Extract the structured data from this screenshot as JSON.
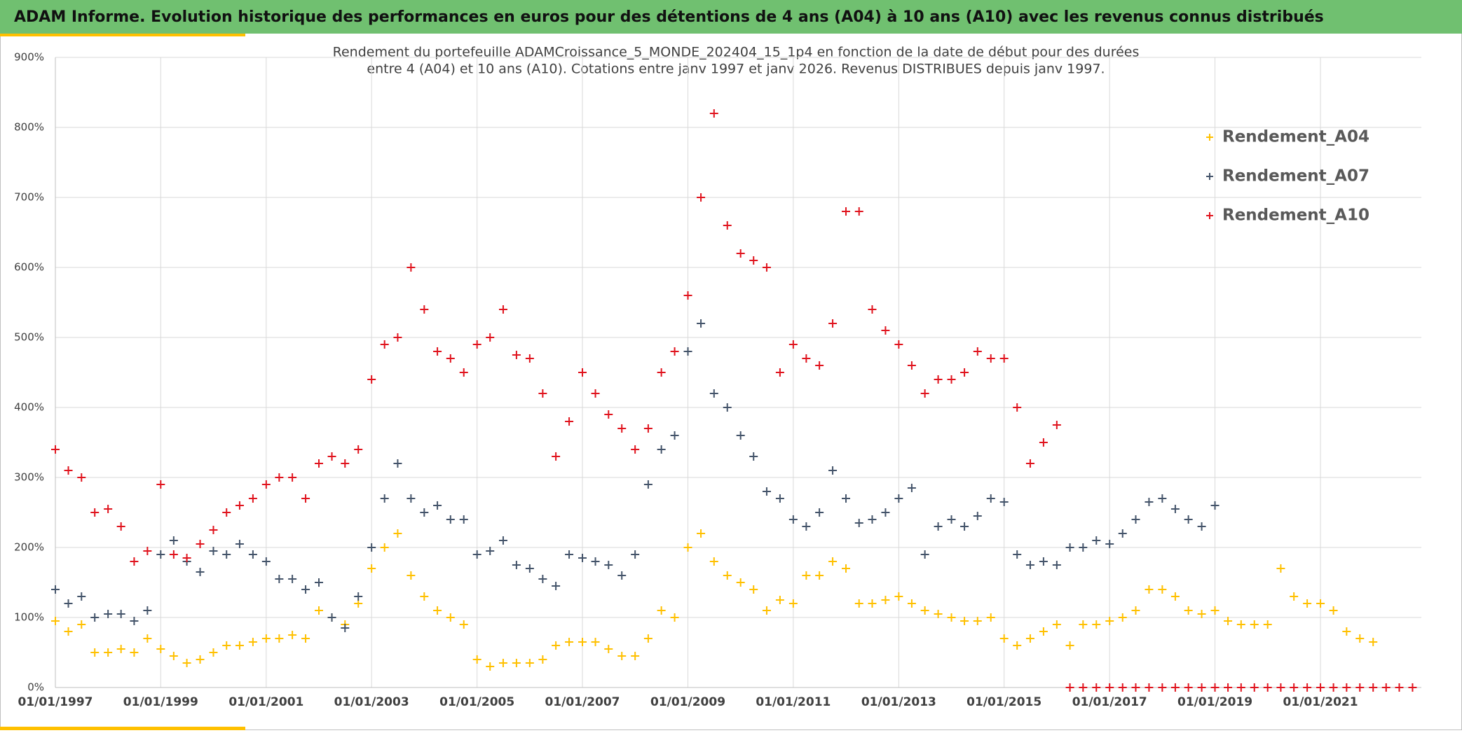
{
  "chart_data": {
    "type": "scatter",
    "title": "ADAM Informe. Evolution historique des performances en euros pour des détentions de 4 ans (A04) à 10 ans (A10) avec les revenus connus distribués",
    "subtitle": [
      "Rendement du portefeuille ADAMCroissance_5_MONDE_202404_15_1p4  en fonction de la date de début pour des durées",
      "entre 4 (A04) et 10 ans (A10). Cotations entre janv 1997 et janv 2026. Revenus DISTRIBUES depuis janv 1997."
    ],
    "x": [
      "1997-01-01",
      "1997-04-01",
      "1997-07-01",
      "1997-10-01",
      "1998-01-01",
      "1998-04-01",
      "1998-07-01",
      "1998-10-01",
      "1999-01-01",
      "1999-04-01",
      "1999-07-01",
      "1999-10-01",
      "2000-01-01",
      "2000-04-01",
      "2000-07-01",
      "2000-10-01",
      "2001-01-01",
      "2001-04-01",
      "2001-07-01",
      "2001-10-01",
      "2002-01-01",
      "2002-04-01",
      "2002-07-01",
      "2002-10-01",
      "2003-01-01",
      "2003-04-01",
      "2003-07-01",
      "2003-10-01",
      "2004-01-01",
      "2004-04-01",
      "2004-07-01",
      "2004-10-01",
      "2005-01-01",
      "2005-04-01",
      "2005-07-01",
      "2005-10-01",
      "2006-01-01",
      "2006-04-01",
      "2006-07-01",
      "2006-10-01",
      "2007-01-01",
      "2007-04-01",
      "2007-07-01",
      "2007-10-01",
      "2008-01-01",
      "2008-04-01",
      "2008-07-01",
      "2008-10-01",
      "2009-01-01",
      "2009-04-01",
      "2009-07-01",
      "2009-10-01",
      "2010-01-01",
      "2010-04-01",
      "2010-07-01",
      "2010-10-01",
      "2011-01-01",
      "2011-04-01",
      "2011-07-01",
      "2011-10-01",
      "2012-01-01",
      "2012-04-01",
      "2012-07-01",
      "2012-10-01",
      "2013-01-01",
      "2013-04-01",
      "2013-07-01",
      "2013-10-01",
      "2014-01-01",
      "2014-04-01",
      "2014-07-01",
      "2014-10-01",
      "2015-01-01",
      "2015-04-01",
      "2015-07-01",
      "2015-10-01",
      "2016-01-01",
      "2016-04-01",
      "2016-07-01",
      "2016-10-01",
      "2017-01-01",
      "2017-04-01",
      "2017-07-01",
      "2017-10-01",
      "2018-01-01",
      "2018-04-01",
      "2018-07-01",
      "2018-10-01",
      "2019-01-01",
      "2019-04-01",
      "2019-07-01",
      "2019-10-01",
      "2020-01-01",
      "2020-04-01",
      "2020-07-01",
      "2020-10-01",
      "2021-01-01",
      "2021-04-01",
      "2021-07-01",
      "2021-10-01",
      "2022-01-01",
      "2022-04-01",
      "2022-07-01",
      "2022-10-01"
    ],
    "series": [
      {
        "name": "Rendement_A04",
        "color": "#ffc000",
        "values": [
          95,
          80,
          90,
          50,
          50,
          55,
          50,
          70,
          55,
          45,
          35,
          40,
          50,
          60,
          60,
          65,
          70,
          70,
          75,
          70,
          110,
          100,
          90,
          120,
          170,
          200,
          220,
          160,
          130,
          110,
          100,
          90,
          40,
          30,
          35,
          35,
          35,
          40,
          60,
          65,
          65,
          65,
          55,
          45,
          45,
          70,
          110,
          100,
          200,
          220,
          180,
          160,
          150,
          140,
          110,
          125,
          120,
          160,
          160,
          180,
          170,
          120,
          120,
          125,
          130,
          120,
          110,
          105,
          100,
          95,
          95,
          100,
          70,
          60,
          70,
          80,
          90,
          60,
          90,
          90,
          95,
          100,
          110,
          140,
          140,
          130,
          110,
          105,
          110,
          95,
          90,
          90,
          90,
          170,
          130,
          120,
          120,
          110,
          80,
          70,
          65,
          null,
          null,
          null
        ]
      },
      {
        "name": "Rendement_A07",
        "color": "#44546a",
        "values": [
          140,
          120,
          130,
          100,
          105,
          105,
          95,
          110,
          190,
          210,
          180,
          165,
          195,
          190,
          205,
          190,
          180,
          155,
          155,
          140,
          150,
          100,
          85,
          130,
          200,
          270,
          320,
          270,
          250,
          260,
          240,
          240,
          190,
          195,
          210,
          175,
          170,
          155,
          145,
          190,
          185,
          180,
          175,
          160,
          190,
          290,
          340,
          360,
          480,
          520,
          420,
          400,
          360,
          330,
          280,
          270,
          240,
          230,
          250,
          310,
          270,
          235,
          240,
          250,
          270,
          285,
          190,
          230,
          240,
          230,
          245,
          270,
          265,
          190,
          175,
          180,
          175,
          200,
          200,
          210,
          205,
          220,
          240,
          265,
          270,
          255,
          240,
          230,
          260,
          null,
          null,
          null,
          null,
          null,
          null,
          null,
          null,
          null,
          null,
          null,
          null,
          null,
          null,
          null
        ]
      },
      {
        "name": "Rendement_A10",
        "color": "#e0141e",
        "values": [
          340,
          310,
          300,
          250,
          255,
          230,
          180,
          195,
          290,
          190,
          185,
          205,
          225,
          250,
          260,
          270,
          290,
          300,
          300,
          270,
          320,
          330,
          320,
          340,
          440,
          490,
          500,
          600,
          540,
          480,
          470,
          450,
          490,
          500,
          540,
          475,
          470,
          420,
          330,
          380,
          450,
          420,
          390,
          370,
          340,
          370,
          450,
          480,
          560,
          700,
          820,
          660,
          620,
          610,
          600,
          450,
          490,
          470,
          460,
          520,
          680,
          680,
          540,
          510,
          490,
          460,
          420,
          440,
          440,
          450,
          480,
          470,
          470,
          400,
          320,
          350,
          375,
          0,
          0,
          0,
          0,
          0,
          0,
          0,
          0,
          0,
          0,
          0,
          0,
          0,
          0,
          0,
          0,
          0,
          0,
          0,
          0,
          0,
          0,
          0,
          0,
          0,
          0,
          0
        ]
      }
    ],
    "xlim": [
      "1997-01-01",
      "2022-12-01"
    ],
    "xticks": [
      {
        "value": "1997-01-01",
        "label": "01/01/1997"
      },
      {
        "value": "1999-01-01",
        "label": "01/01/1999"
      },
      {
        "value": "2001-01-01",
        "label": "01/01/2001"
      },
      {
        "value": "2003-01-01",
        "label": "01/01/2003"
      },
      {
        "value": "2005-01-01",
        "label": "01/01/2005"
      },
      {
        "value": "2007-01-01",
        "label": "01/01/2007"
      },
      {
        "value": "2009-01-01",
        "label": "01/01/2009"
      },
      {
        "value": "2011-01-01",
        "label": "01/01/2011"
      },
      {
        "value": "2013-01-01",
        "label": "01/01/2013"
      },
      {
        "value": "2015-01-01",
        "label": "01/01/2015"
      },
      {
        "value": "2017-01-01",
        "label": "01/01/2017"
      },
      {
        "value": "2019-01-01",
        "label": "01/01/2019"
      },
      {
        "value": "2021-01-01",
        "label": "01/01/2021"
      }
    ],
    "ylim": [
      0,
      900
    ],
    "yticks": [
      {
        "value": 0,
        "label": "0%"
      },
      {
        "value": 100,
        "label": "100%"
      },
      {
        "value": 200,
        "label": "200%"
      },
      {
        "value": 300,
        "label": "300%"
      },
      {
        "value": 400,
        "label": "400%"
      },
      {
        "value": 500,
        "label": "500%"
      },
      {
        "value": 600,
        "label": "600%"
      },
      {
        "value": 700,
        "label": "700%"
      },
      {
        "value": 800,
        "label": "800%"
      },
      {
        "value": 900,
        "label": "900%"
      }
    ],
    "grid": true,
    "legend": "top-right"
  }
}
